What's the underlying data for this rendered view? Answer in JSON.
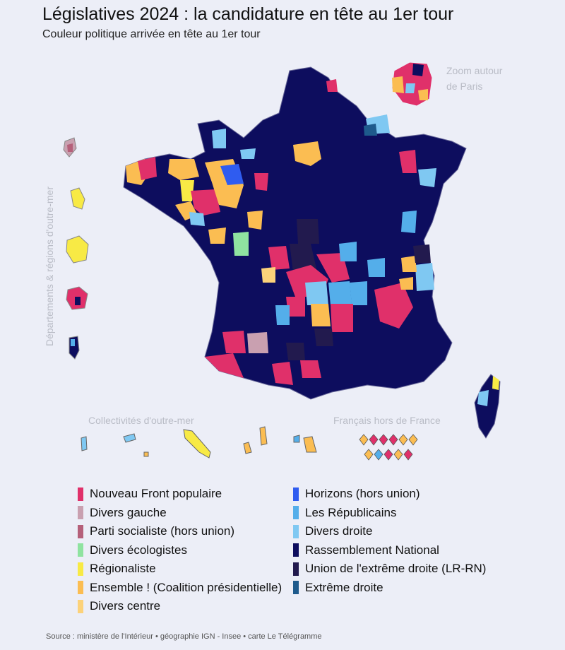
{
  "title": "Législatives 2024 : la candidature en tête au 1er tour",
  "subtitle": "Couleur politique arrivée en tête au 1er tour",
  "map": {
    "paris_zoom_label_line1": "Zoom autour",
    "paris_zoom_label_line2": "de Paris",
    "overseas_departments_label": "Départements & régions d'outre-mer",
    "overseas_collectivities_label": "Collectivités d'outre-mer",
    "abroad_label": "Français hors de France"
  },
  "legend": [
    {
      "label": "Nouveau Front populaire",
      "color": "#e0306a"
    },
    {
      "label": "Divers gauche",
      "color": "#c9a0b0"
    },
    {
      "label": "Parti socialiste (hors union)",
      "color": "#b5607a"
    },
    {
      "label": "Divers écologistes",
      "color": "#8fe3a0"
    },
    {
      "label": "Régionaliste",
      "color": "#f8ea45"
    },
    {
      "label": "Ensemble ! (Coalition présidentielle)",
      "color": "#fbbd52"
    },
    {
      "label": "Divers centre",
      "color": "#fcd27a"
    },
    {
      "label": "Horizons (hors union)",
      "color": "#2f5cf0"
    },
    {
      "label": "Les Républicains",
      "color": "#54aeea"
    },
    {
      "label": "Divers droite",
      "color": "#7fc8f2"
    },
    {
      "label": "Rassemblement National",
      "color": "#0d0d5e"
    },
    {
      "label": "Union de l'extrême droite (LR-RN)",
      "color": "#221a4e"
    },
    {
      "label": "Extrême droite",
      "color": "#1e5a8c"
    }
  ],
  "source": "Source : ministère de l'Intérieur • géographie IGN - Insee • carte Le Télégramme"
}
